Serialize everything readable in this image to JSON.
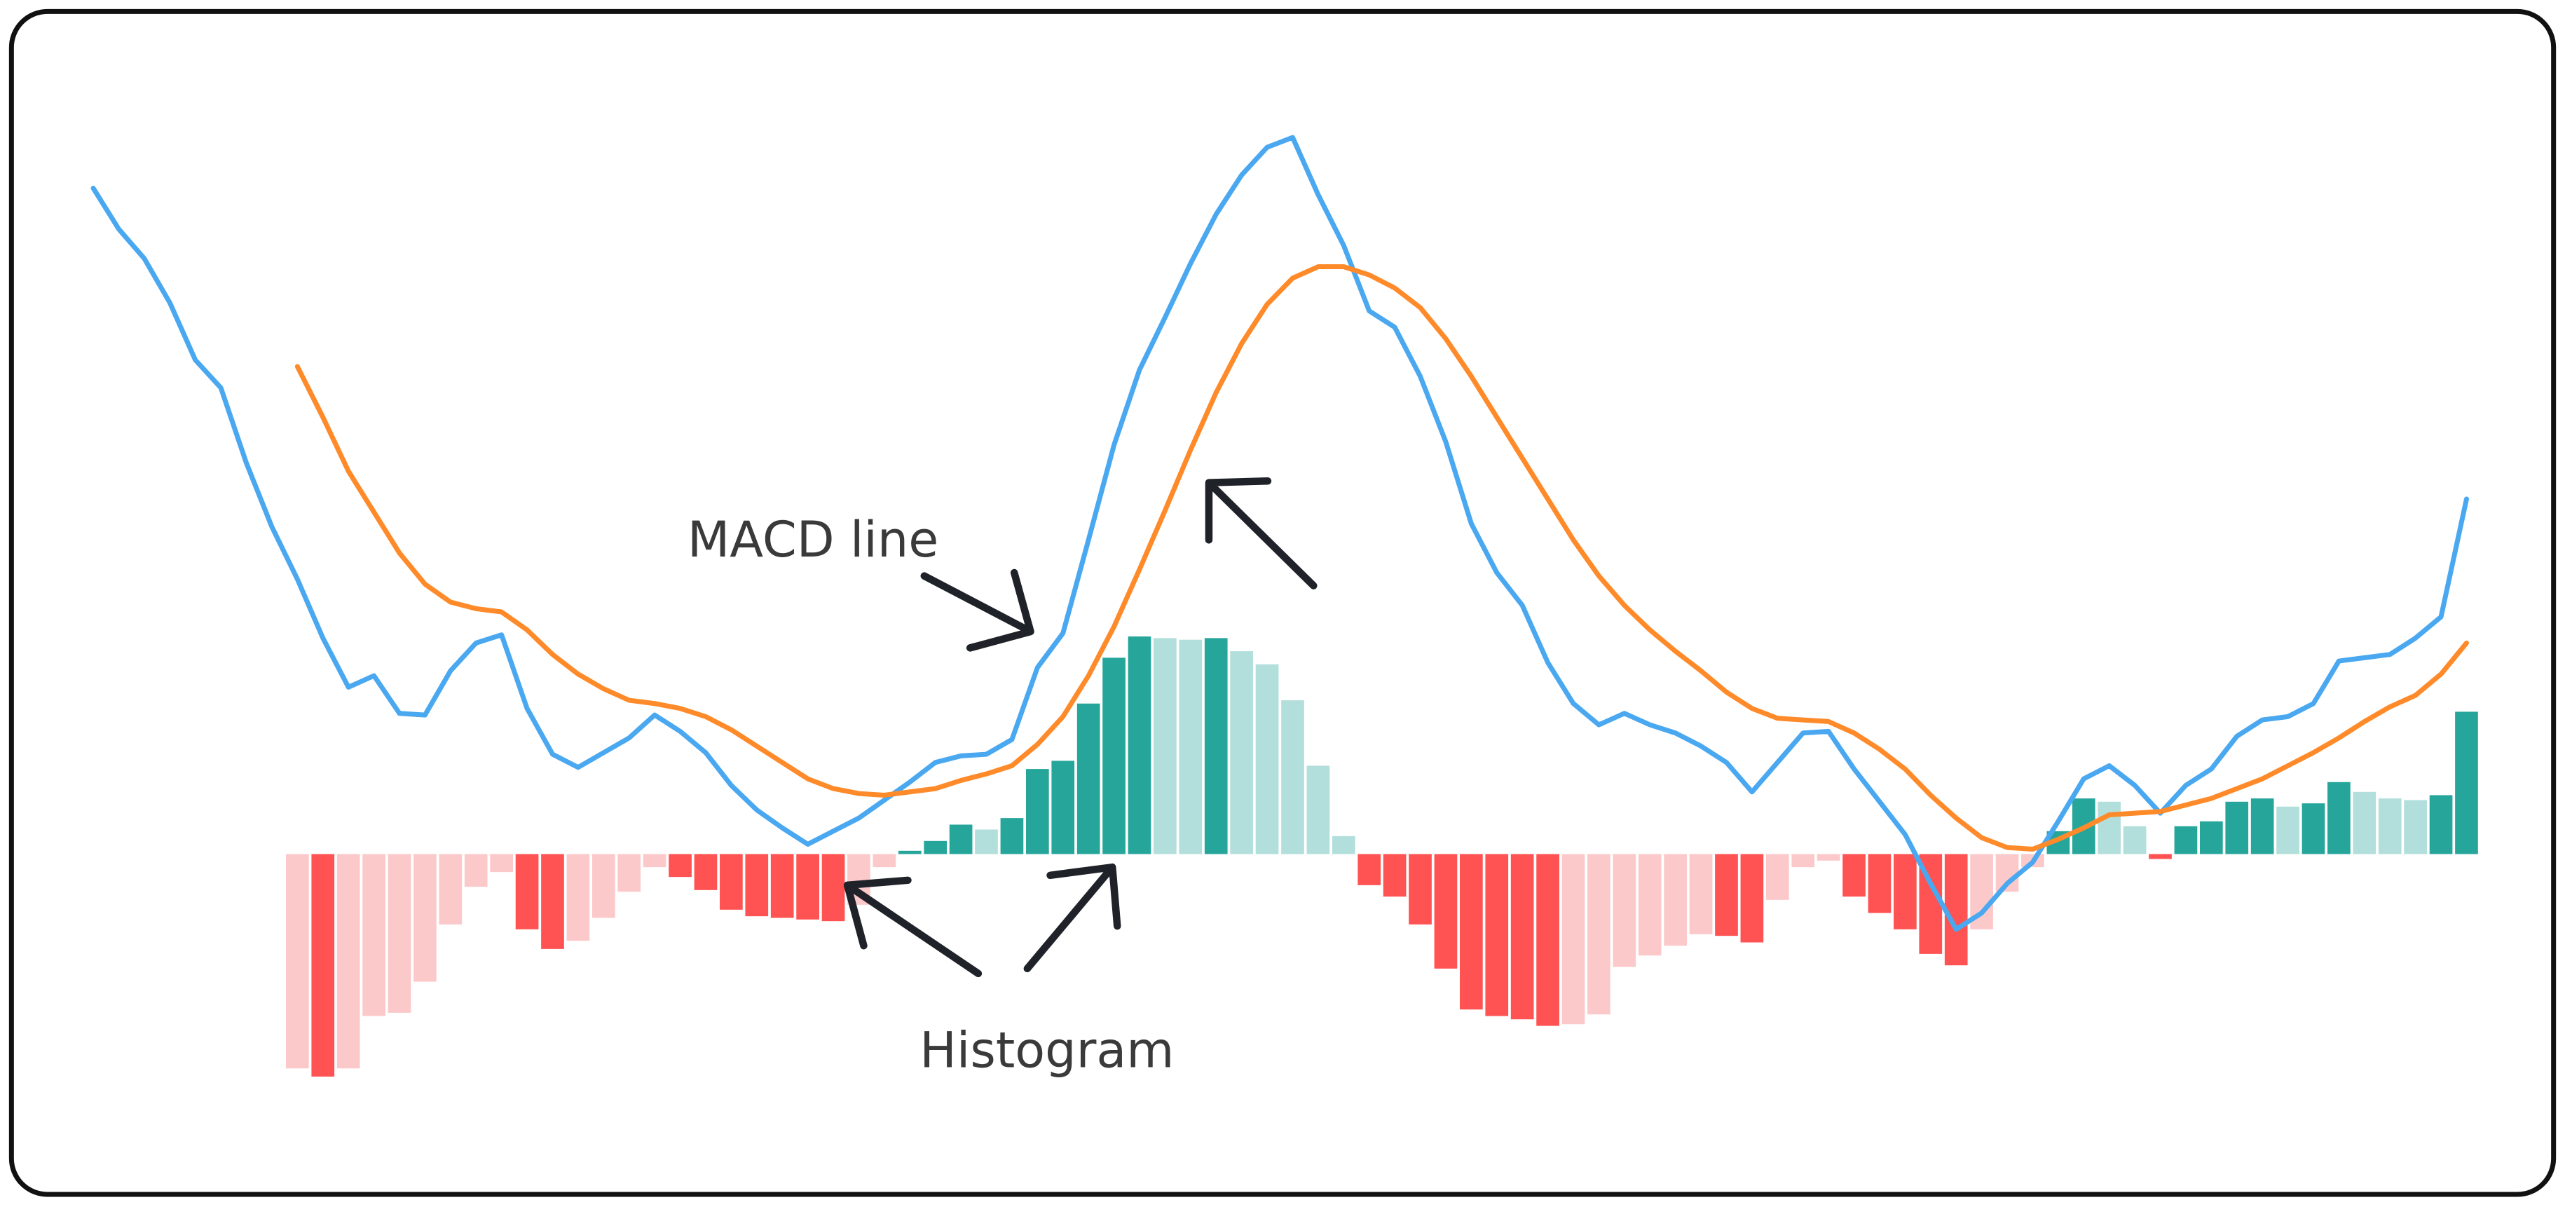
{
  "chart_data": {
    "type": "macd",
    "annotations": [
      "MACD line",
      "Histogram"
    ],
    "ylim": [
      -180,
      470
    ],
    "histogram": {
      "colors": {
        "rising_positive": "#26a69a",
        "falling_positive": "#b2dfdb",
        "falling_negative": "#ff5252",
        "rising_negative": "#fcc9cb"
      },
      "values": [
        null,
        null,
        null,
        null,
        null,
        null,
        null,
        null,
        -131,
        -136,
        -131,
        -99,
        -97,
        -78,
        -43,
        -20,
        -11,
        -46,
        -58,
        -53,
        -39,
        -23,
        -8,
        -14,
        -22,
        -34,
        -38,
        -39,
        -40,
        -41,
        -31,
        -8,
        2,
        8,
        18,
        15,
        22,
        52,
        57,
        92,
        120,
        133,
        132,
        131,
        132,
        124,
        116,
        94,
        54,
        11,
        -19,
        -26,
        -43,
        -70,
        -95,
        -99,
        -101,
        -105,
        -104,
        -98,
        -69,
        -62,
        -56,
        -49,
        -50,
        -54,
        -28,
        -8,
        -4,
        -26,
        -36,
        -46,
        -61,
        -68,
        -46,
        -23,
        -8,
        14,
        34,
        32,
        17,
        -3,
        17,
        20,
        32,
        34,
        29,
        31,
        44,
        38,
        34,
        33,
        36,
        87
      ]
    },
    "series": [
      {
        "color": "#4aa8f0",
        "values": [
          407,
          382,
          364,
          337,
          302,
          285,
          239,
          200,
          168,
          132,
          102,
          109,
          86,
          85,
          112,
          129,
          134,
          89,
          61,
          53,
          62,
          71,
          85,
          75,
          62,
          42,
          27,
          16,
          6,
          14,
          22,
          33,
          44,
          56,
          60,
          61,
          70,
          114,
          135,
          192,
          250,
          296,
          328,
          361,
          391,
          415,
          432,
          438,
          403,
          372,
          332,
          322,
          292,
          252,
          202,
          172,
          152,
          117,
          92,
          79,
          86,
          79,
          74,
          66,
          56,
          38,
          56,
          74,
          75,
          52,
          32,
          12,
          -18,
          -46,
          -36,
          -18,
          -5,
          20,
          46,
          54,
          42,
          25,
          42,
          52,
          72,
          82,
          84,
          92,
          118,
          120,
          122,
          132,
          145,
          217
        ]
      },
      {
        "color": "#ff8a2a",
        "values": [
          null,
          null,
          null,
          null,
          null,
          null,
          null,
          null,
          298,
          267,
          234,
          209,
          184,
          165,
          154,
          150,
          148,
          137,
          122,
          110,
          101,
          94,
          92,
          89,
          84,
          76,
          66,
          56,
          46,
          40,
          37,
          36,
          38,
          40,
          45,
          49,
          54,
          67,
          84,
          109,
          139,
          174,
          210,
          247,
          282,
          312,
          336,
          352,
          359,
          359,
          354,
          346,
          334,
          315,
          292,
          267,
          242,
          217,
          192,
          170,
          152,
          137,
          124,
          112,
          99,
          89,
          83,
          82,
          81,
          74,
          64,
          52,
          36,
          22,
          10,
          4,
          3,
          9,
          16,
          24,
          25,
          26,
          30,
          34,
          40,
          46,
          54,
          62,
          71,
          81,
          90,
          97,
          110,
          129
        ]
      }
    ]
  }
}
